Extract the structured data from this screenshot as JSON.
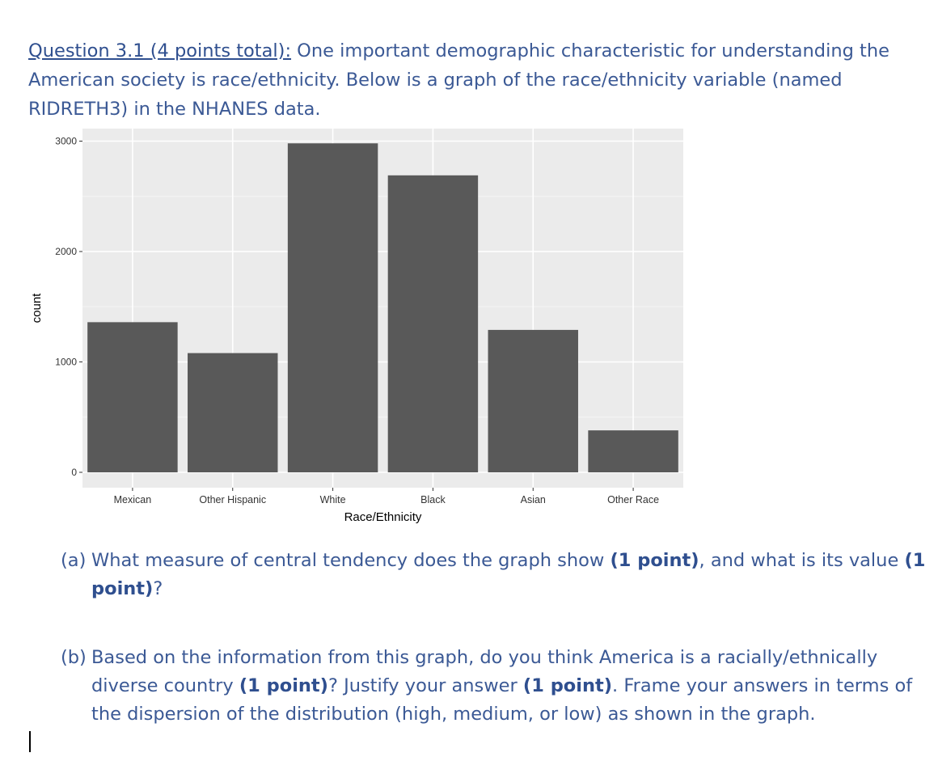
{
  "question": {
    "title": "Question 3.1 (4 points total):",
    "text": " One important demographic characteristic for understanding the American society is race/ethnicity. Below is a graph of the race/ethnicity variable (named RIDRETH3) in the NHANES data."
  },
  "chart_data": {
    "type": "bar",
    "categories": [
      "Mexican",
      "Other Hispanic",
      "White",
      "Black",
      "Asian",
      "Other Race"
    ],
    "values": [
      1360,
      1080,
      2980,
      2690,
      1290,
      380
    ],
    "xlabel": "Race/Ethnicity",
    "ylabel": "count",
    "ylim": [
      0,
      3100
    ],
    "yticks": [
      0,
      1000,
      2000,
      3000
    ],
    "grid": true,
    "colors": {
      "panel": "#ebebeb",
      "grid_major": "#ffffff",
      "bar": "#595959",
      "tick_text": "#333333",
      "axis_title": "#000000"
    }
  },
  "parts": {
    "a": {
      "letter": "(a)",
      "t1": "What measure of central tendency does the graph show ",
      "b1": "(1 point)",
      "t2": ", and what is its value ",
      "b2": "(1 point)",
      "t3": "?"
    },
    "b": {
      "letter": "(b)",
      "t1": "Based on the information from this graph, do you think America is a racially/ethnically diverse country ",
      "b1": "(1 point)",
      "t2": "? Justify your answer ",
      "b2": "(1 point)",
      "t3": ". Frame your answers in terms of the dispersion of the distribution (high, medium, or low) as shown in the graph."
    }
  }
}
